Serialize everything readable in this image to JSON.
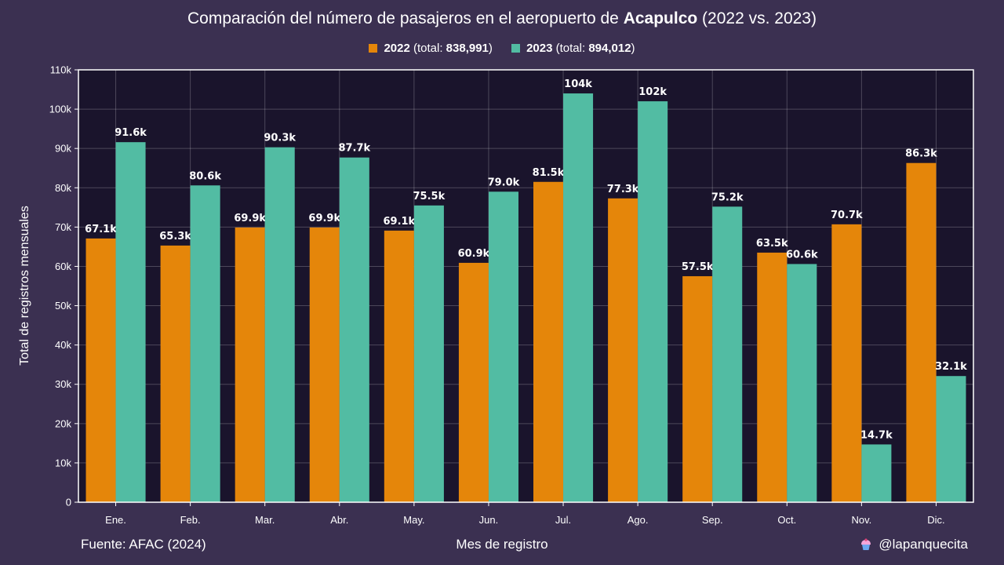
{
  "title": {
    "prefix": "Comparación del número de pasajeros en el aeropuerto de ",
    "bold": "Acapulco",
    "suffix": " (2022 vs. 2023)"
  },
  "legend": [
    {
      "name": "2022",
      "total_prefix": " (total: ",
      "total": "838,991",
      "total_suffix": ")"
    },
    {
      "name": "2023",
      "total_prefix": " (total: ",
      "total": "894,012",
      "total_suffix": ")"
    }
  ],
  "source": "Fuente: AFAC (2024)",
  "credit": "@lapanquecita",
  "chart_data": {
    "type": "bar",
    "title": "Comparación del número de pasajeros en el aeropuerto de Acapulco (2022 vs. 2023)",
    "xlabel": "Mes de registro",
    "ylabel": "Total de registros mensuales",
    "categories": [
      "Ene.",
      "Feb.",
      "Mar.",
      "Abr.",
      "May.",
      "Jun.",
      "Jul.",
      "Ago.",
      "Sep.",
      "Oct.",
      "Nov.",
      "Dic."
    ],
    "ylim": [
      0,
      110000
    ],
    "yticks": [
      0,
      10000,
      20000,
      30000,
      40000,
      50000,
      60000,
      70000,
      80000,
      90000,
      100000,
      110000
    ],
    "ytick_labels": [
      "0",
      "10k",
      "20k",
      "30k",
      "40k",
      "50k",
      "60k",
      "70k",
      "80k",
      "90k",
      "100k",
      "110k"
    ],
    "grid": true,
    "legend_position": "top-center",
    "series": [
      {
        "name": "2022",
        "color": "#e5860a",
        "values": [
          67100,
          65300,
          69900,
          69900,
          69100,
          60900,
          81500,
          77300,
          57500,
          63500,
          70700,
          86300
        ],
        "labels": [
          "67.1k",
          "65.3k",
          "69.9k",
          "69.9k",
          "69.1k",
          "60.9k",
          "81.5k",
          "77.3k",
          "57.5k",
          "63.5k",
          "70.7k",
          "86.3k"
        ]
      },
      {
        "name": "2023",
        "color": "#52bca3",
        "values": [
          91600,
          80600,
          90300,
          87700,
          75500,
          79000,
          104000,
          102000,
          75200,
          60600,
          14700,
          32100
        ],
        "labels": [
          "91.6k",
          "80.6k",
          "90.3k",
          "87.7k",
          "75.5k",
          "79.0k",
          "104k",
          "102k",
          "75.2k",
          "60.6k",
          "14.7k",
          "32.1k"
        ]
      }
    ]
  }
}
